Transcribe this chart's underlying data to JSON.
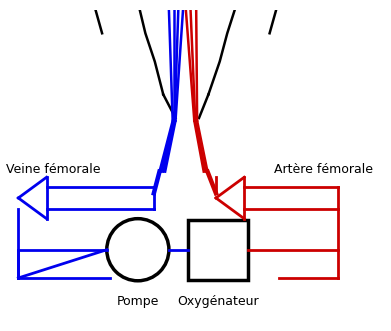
{
  "background_color": "#ffffff",
  "fig_width": 3.91,
  "fig_height": 3.31,
  "dpi": 100,
  "blue": "#0000ee",
  "red": "#cc0000",
  "black": "#000000",
  "label_veine": "Veine fémorale",
  "label_artere": "Artère fémorale",
  "label_pompe": "Pompe",
  "label_oxy": "Oxygénateur",
  "label_fontsize": 9,
  "lw_body": 1.8,
  "lw_vessel": 1.8,
  "lw_circuit": 2.0,
  "lw_arrow": 2.0
}
